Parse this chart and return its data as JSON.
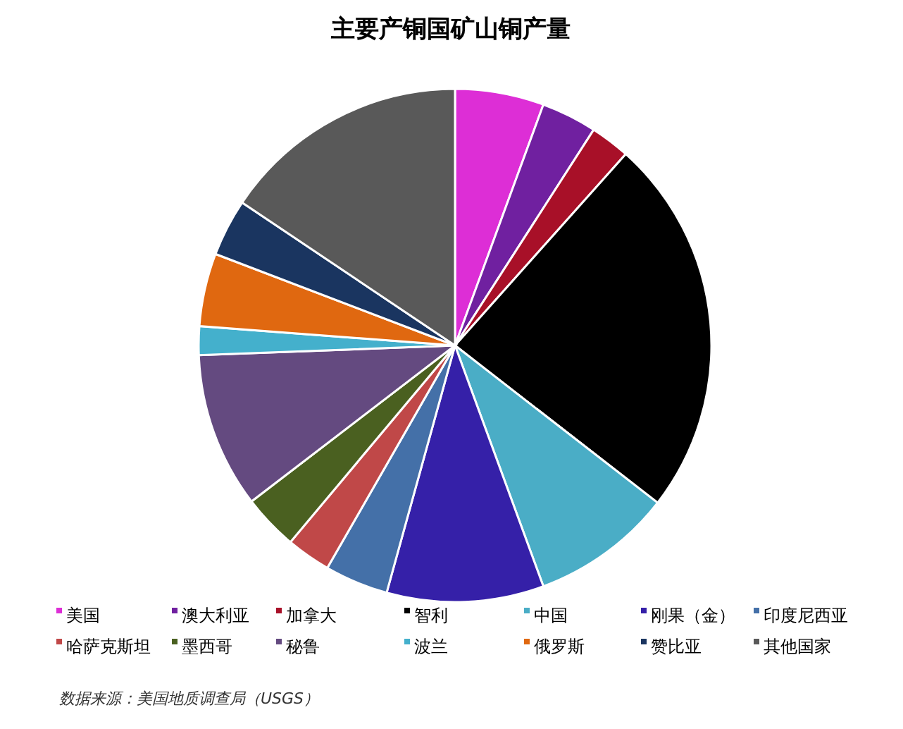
{
  "chart_data": {
    "type": "pie",
    "title": "主要产铜国矿山铜产量",
    "categories": [
      "美国",
      "澳大利亚",
      "加拿大",
      "智利",
      "中国",
      "刚果（金）",
      "印度尼西亚",
      "哈萨克斯坦",
      "墨西哥",
      "秘鲁",
      "波兰",
      "俄罗斯",
      "赞比亚",
      "其他国家"
    ],
    "values": [
      5.6,
      3.5,
      2.5,
      23.9,
      8.9,
      9.9,
      4.0,
      2.8,
      3.5,
      9.8,
      1.8,
      4.6,
      3.6,
      15.6
    ],
    "colors": [
      "#dd2ed6",
      "#7020a0",
      "#a81028",
      "#000000",
      "#4aadc6",
      "#3520a8",
      "#4470a8",
      "#c04848",
      "#4a6020",
      "#644a80",
      "#44b0cc",
      "#e06810",
      "#1a3560",
      "#595959"
    ],
    "legend": "bottom",
    "annotations": [
      "数据来源：美国地质调查局（USGS）"
    ]
  }
}
